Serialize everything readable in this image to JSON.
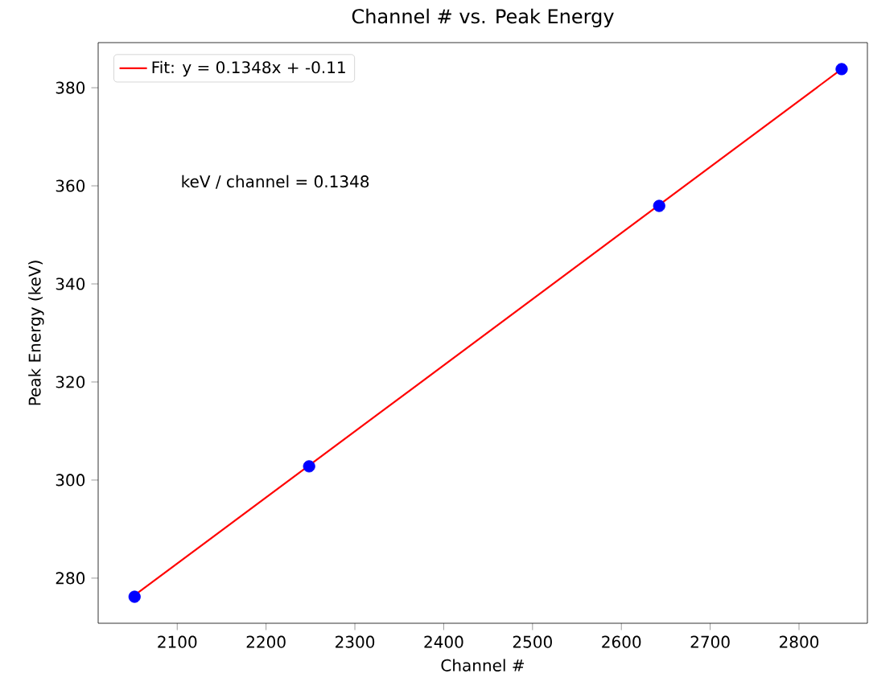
{
  "chart_data": {
    "type": "scatter",
    "title": "Channel # vs. Peak Energy",
    "xlabel": "Channel #",
    "ylabel": "Peak Energy (keV)",
    "annotations": [
      "keV / channel = 0.1348"
    ],
    "series": [
      {
        "color": "#0000ff",
        "marker": "circle",
        "x": [
          2052,
          2248.5,
          2642.6,
          2848
        ],
        "values": [
          276.2,
          302.8,
          355.9,
          383.8
        ]
      },
      {
        "type": "line",
        "name": "Fit: y = 0.1348x + -0.11",
        "color": "#ff0000",
        "marker": "none",
        "line_style": "solid",
        "x": [
          2052,
          2848
        ],
        "values": [
          276.5,
          383.8
        ]
      }
    ],
    "xlim": [
      2011,
      2877
    ],
    "ylim": [
      270.8,
      389.2
    ],
    "xticks": [
      2100,
      2200,
      2300,
      2400,
      2500,
      2600,
      2700,
      2800
    ],
    "yticks": [
      280,
      300,
      320,
      340,
      360,
      380
    ],
    "grid": false,
    "legend": "top left"
  }
}
